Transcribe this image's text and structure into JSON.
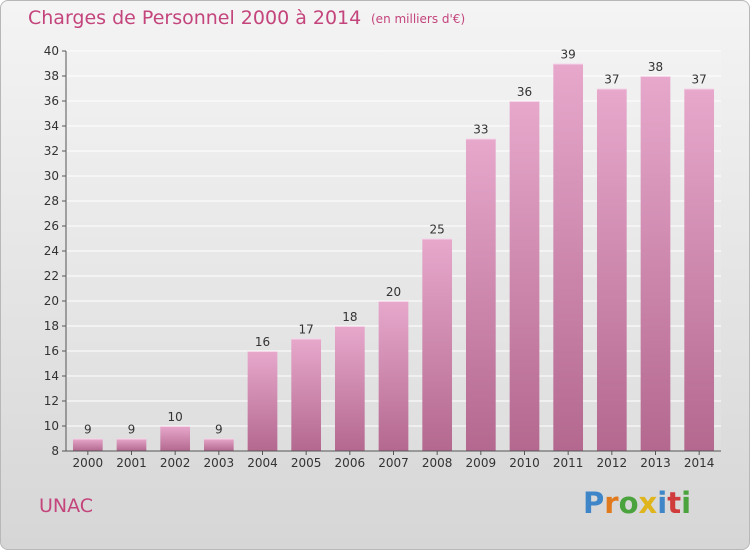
{
  "title": "Charges de Personnel 2000 à 2014",
  "unit_note": "(en milliers d'€)",
  "place": "UNAC",
  "logo": {
    "text": "Proxiti",
    "letters": [
      {
        "ch": "P",
        "color": "#3e86c8"
      },
      {
        "ch": "r",
        "color": "#e07a1c"
      },
      {
        "ch": "o",
        "color": "#4aa33c"
      },
      {
        "ch": "x",
        "color": "#e0b51c"
      },
      {
        "ch": "i",
        "color": "#3e86c8"
      },
      {
        "ch": "t",
        "color": "#d03c3c"
      },
      {
        "ch": "i",
        "color": "#4aa33c"
      }
    ]
  },
  "colors": {
    "accent": "#c4447c",
    "bar_top": "#e7a8cc",
    "bar_bottom": "#b4688f"
  },
  "chart_data": {
    "type": "bar",
    "categories": [
      "2000",
      "2001",
      "2002",
      "2003",
      "2004",
      "2005",
      "2006",
      "2007",
      "2008",
      "2009",
      "2010",
      "2011",
      "2012",
      "2013",
      "2014"
    ],
    "values": [
      9,
      9,
      10,
      9,
      16,
      17,
      18,
      20,
      25,
      33,
      36,
      39,
      37,
      38,
      37
    ],
    "title": "Charges de Personnel 2000 à 2014",
    "xlabel": "",
    "ylabel": "",
    "ylim": [
      8,
      40
    ],
    "yticks": [
      8,
      10,
      12,
      14,
      16,
      18,
      20,
      22,
      24,
      26,
      28,
      30,
      32,
      34,
      36,
      38,
      40
    ],
    "grid": true,
    "legend": "none",
    "data_labels": true
  }
}
